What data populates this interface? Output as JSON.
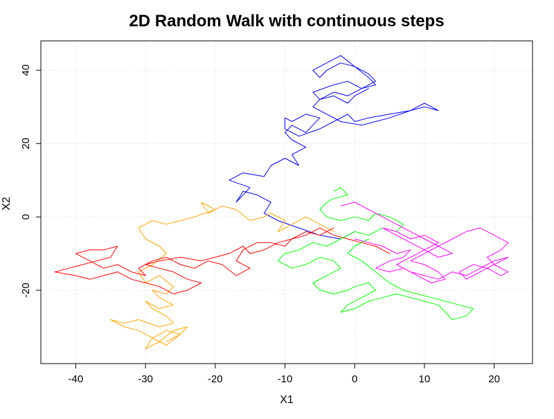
{
  "chart_data": {
    "type": "line",
    "title": "2D Random Walk with continuous steps",
    "xlabel": "X1",
    "ylabel": "X2",
    "xlim": [
      -45,
      25.5
    ],
    "ylim": [
      -40,
      48
    ],
    "xticks": [
      -40,
      -30,
      -20,
      -10,
      0,
      10,
      20
    ],
    "yticks": [
      -20,
      0,
      20,
      40
    ],
    "grid": true,
    "series": [
      {
        "color": "#0000ff",
        "x": [
          0,
          -2,
          -5,
          -8,
          -11,
          -13,
          -12,
          -14,
          -16,
          -17,
          -15,
          -18,
          -16,
          -13,
          -12,
          -10,
          -8,
          -9,
          -7,
          -9,
          -10,
          -9,
          -7,
          -6,
          -5,
          -7,
          -9,
          -10,
          -10,
          -8,
          -5,
          -3,
          -1,
          0,
          2,
          5,
          8,
          10,
          12,
          10,
          8,
          5,
          3,
          1,
          -2,
          -4,
          -6,
          -5,
          -3,
          -1,
          1,
          3,
          2,
          0,
          -2,
          -4,
          -5,
          -6,
          -4,
          -2,
          0,
          2,
          3,
          1,
          -1,
          -3,
          -6,
          -5,
          -3,
          -1,
          0,
          2,
          1
        ],
        "y": [
          -4,
          -6,
          -5,
          -3,
          -1,
          1,
          4,
          6,
          7,
          4,
          8,
          10,
          12,
          11,
          14,
          16,
          14,
          17,
          19,
          21,
          23,
          25,
          23,
          25,
          27,
          28,
          26,
          27,
          24,
          22,
          24,
          26,
          28,
          26,
          27,
          28,
          29,
          30,
          29,
          31,
          29,
          27,
          26,
          25,
          26,
          28,
          30,
          32,
          34,
          33,
          35,
          37,
          39,
          41,
          42,
          40,
          38,
          40,
          42,
          44,
          41,
          38,
          36,
          35,
          37,
          36,
          34,
          32,
          33,
          31,
          33,
          35,
          34
        ]
      },
      {
        "color": "#ffa500",
        "x": [
          -3,
          -5,
          -7,
          -9,
          -11,
          -10,
          -12,
          -13,
          -15,
          -17,
          -19,
          -21,
          -22,
          -20,
          -23,
          -25,
          -27,
          -29,
          -31,
          -30,
          -28,
          -27,
          -29,
          -31,
          -30,
          -28,
          -26,
          -27,
          -29,
          -28,
          -26,
          -28,
          -30,
          -29,
          -27,
          -26,
          -28,
          -31,
          -33,
          -35,
          -33,
          -31,
          -29,
          -27,
          -25,
          -24,
          -26,
          -28,
          -30,
          -29,
          -27,
          -25,
          -27
        ],
        "y": [
          -4,
          -2,
          0,
          -2,
          -4,
          -1,
          1,
          0,
          -1,
          2,
          3,
          1,
          4,
          2,
          0,
          -1,
          -2,
          -1,
          -3,
          -6,
          -8,
          -10,
          -13,
          -15,
          -18,
          -16,
          -19,
          -21,
          -20,
          -22,
          -24,
          -25,
          -23,
          -25,
          -27,
          -29,
          -30,
          -28,
          -29,
          -28,
          -30,
          -31,
          -33,
          -35,
          -32,
          -30,
          -31,
          -34,
          -36,
          -33,
          -31,
          -32,
          -34
        ]
      },
      {
        "color": "#ff0000",
        "x": [
          -3,
          -5,
          -7,
          -9,
          -10,
          -12,
          -14,
          -16,
          -17,
          -15,
          -17,
          -19,
          -21,
          -23,
          -25,
          -27,
          -29,
          -31,
          -30,
          -32,
          -34,
          -36,
          -38,
          -40,
          -38,
          -36,
          -34,
          -35,
          -37,
          -39,
          -41,
          -43,
          -40,
          -38,
          -36,
          -34,
          -32,
          -30,
          -28,
          -26,
          -24,
          -22,
          -24,
          -26,
          -28,
          -30,
          -28,
          -25,
          -22,
          -20,
          -18,
          -16,
          -15,
          -13,
          -11,
          -9,
          -7,
          -5,
          -3,
          -1,
          1,
          3,
          5
        ],
        "y": [
          -3,
          -5,
          -4,
          -6,
          -8,
          -7,
          -7,
          -9,
          -12,
          -14,
          -16,
          -13,
          -12,
          -14,
          -13,
          -11,
          -12,
          -14,
          -16,
          -15,
          -13,
          -14,
          -12,
          -10,
          -9,
          -9,
          -8,
          -11,
          -12,
          -13,
          -14,
          -15,
          -16,
          -17,
          -16,
          -15,
          -17,
          -18,
          -19,
          -21,
          -20,
          -18,
          -17,
          -15,
          -14,
          -13,
          -12,
          -11,
          -12,
          -11,
          -10,
          -8,
          -10,
          -9,
          -7,
          -6,
          -5,
          -3,
          -5,
          -6,
          -7,
          -8,
          -10
        ]
      },
      {
        "color": "#00ff00",
        "x": [
          -3,
          -2,
          -1,
          -3,
          -4,
          -5,
          -4,
          -2,
          0,
          2,
          3,
          5,
          7,
          6,
          4,
          2,
          0,
          -2,
          -4,
          -6,
          -8,
          -10,
          -11,
          -9,
          -7,
          -5,
          -3,
          -2,
          -4,
          -6,
          -5,
          -3,
          -1,
          0,
          2,
          3,
          1,
          -1,
          -2,
          0,
          2,
          4,
          6,
          8,
          10,
          12,
          13,
          14,
          16,
          17,
          15,
          13,
          11,
          9,
          7,
          5,
          3,
          1,
          -1,
          0,
          2
        ],
        "y": [
          7,
          8,
          6,
          5,
          4,
          2,
          0,
          -1,
          0,
          -1,
          1,
          0,
          -2,
          -4,
          -3,
          -5,
          -4,
          -6,
          -8,
          -7,
          -9,
          -10,
          -12,
          -14,
          -13,
          -11,
          -12,
          -14,
          -16,
          -18,
          -20,
          -21,
          -20,
          -19,
          -18,
          -20,
          -22,
          -24,
          -26,
          -25,
          -23,
          -22,
          -21,
          -22,
          -23,
          -24,
          -26,
          -28,
          -27,
          -25,
          -24,
          -23,
          -22,
          -21,
          -20,
          -18,
          -15,
          -12,
          -10,
          -8,
          -6
        ]
      },
      {
        "color": "#ff00ff",
        "x": [
          0,
          2,
          4,
          6,
          8,
          7,
          5,
          3,
          5,
          7,
          9,
          11,
          13,
          12,
          10,
          8,
          10,
          12,
          14,
          16,
          18,
          20,
          22,
          21,
          19,
          20,
          22,
          21,
          19,
          17,
          15,
          16,
          18,
          20,
          22,
          20,
          18,
          16,
          14,
          12,
          10,
          8,
          6,
          8,
          10,
          12,
          10,
          8,
          6,
          4,
          6,
          8,
          10,
          12,
          14,
          12,
          10,
          8,
          6,
          4,
          2,
          0,
          -2
        ],
        "y": [
          -6,
          -7,
          -8,
          -10,
          -9,
          -11,
          -12,
          -14,
          -15,
          -14,
          -16,
          -18,
          -17,
          -15,
          -13,
          -12,
          -10,
          -8,
          -6,
          -4,
          -3,
          -5,
          -7,
          -9,
          -11,
          -13,
          -15,
          -16,
          -14,
          -13,
          -15,
          -17,
          -15,
          -13,
          -11,
          -12,
          -14,
          -16,
          -15,
          -17,
          -16,
          -15,
          -13,
          -11,
          -9,
          -7,
          -5,
          -6,
          -4,
          -3,
          -5,
          -7,
          -9,
          -11,
          -10,
          -8,
          -6,
          -4,
          -2,
          0,
          2,
          4,
          3
        ]
      }
    ]
  }
}
